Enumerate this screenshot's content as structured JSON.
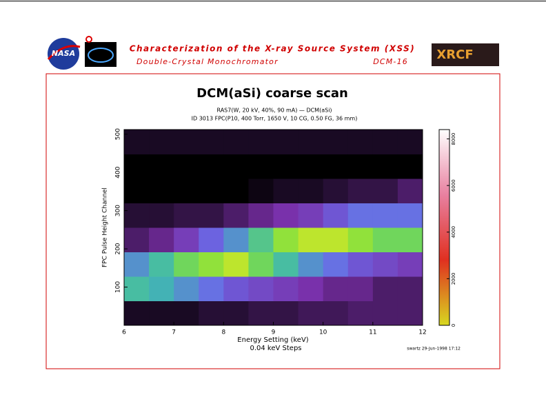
{
  "header": {
    "title": "Characterization of the X-ray Source System (XSS)",
    "subtitle": "Double-Crystal Monochromator",
    "code": "DCM-16",
    "logos": [
      "NASA",
      "XRCF"
    ]
  },
  "chart_data": {
    "type": "heatmap",
    "title": "DCM(aSi) coarse scan",
    "subtitle": [
      "RAS7(W, 20 kV, 40%, 90 mA) — DCM(aSi)",
      "ID 3013 FPC(P10, 400 Torr, 1650 V, 10 CG, 0.50 FG, 36 mm)"
    ],
    "x_label": "Energy Setting (keV)",
    "x_label2": "0.04 keV Steps",
    "y_label": "FPC Pulse Height Channel",
    "footnote": "swartz 29-Jun-1998 17:12",
    "xlim": [
      6,
      12
    ],
    "xticks": [
      6,
      7,
      8,
      9,
      10,
      11,
      12
    ],
    "ylim": [
      0,
      512
    ],
    "yticks": [
      100,
      200,
      300,
      400,
      500
    ],
    "zlim": [
      0,
      8400
    ],
    "zticks": [
      0,
      2000,
      4000,
      6000,
      8000
    ],
    "x_bins": [
      6,
      6.5,
      7,
      7.5,
      8,
      8.5,
      9,
      9.5,
      10,
      10.5,
      11,
      11.5,
      12
    ],
    "y_bins": [
      0,
      64,
      128,
      192,
      256,
      320,
      384,
      448,
      512
    ],
    "z": [
      [
        100,
        100,
        100,
        150,
        150,
        200,
        200,
        250,
        250,
        300,
        300,
        300
      ],
      [
        1500,
        1400,
        1200,
        1000,
        800,
        700,
        600,
        500,
        400,
        400,
        300,
        300
      ],
      [
        1200,
        1500,
        1800,
        2000,
        2200,
        1800,
        1500,
        1200,
        1000,
        800,
        700,
        600
      ],
      [
        300,
        400,
        600,
        900,
        1200,
        1600,
        2000,
        2200,
        2200,
        2000,
        1800,
        1800
      ],
      [
        150,
        150,
        200,
        200,
        300,
        400,
        500,
        600,
        800,
        1000,
        1000,
        1000
      ],
      [
        0,
        0,
        0,
        0,
        0,
        50,
        100,
        100,
        150,
        200,
        200,
        300
      ],
      [
        0,
        0,
        0,
        0,
        0,
        0,
        0,
        0,
        0,
        0,
        0,
        0
      ],
      [
        100,
        100,
        100,
        100,
        100,
        100,
        100,
        100,
        100,
        100,
        100,
        100
      ]
    ],
    "color_range": [
      0,
      2400
    ],
    "colorscale": [
      "#000000",
      "#7a2fa8",
      "#6a6ae8",
      "#40b8b0",
      "#80e040",
      "#e8e820"
    ],
    "colorbar_colors": [
      "#d8d820",
      "#e03020",
      "#e880a0",
      "#ffffff"
    ]
  }
}
